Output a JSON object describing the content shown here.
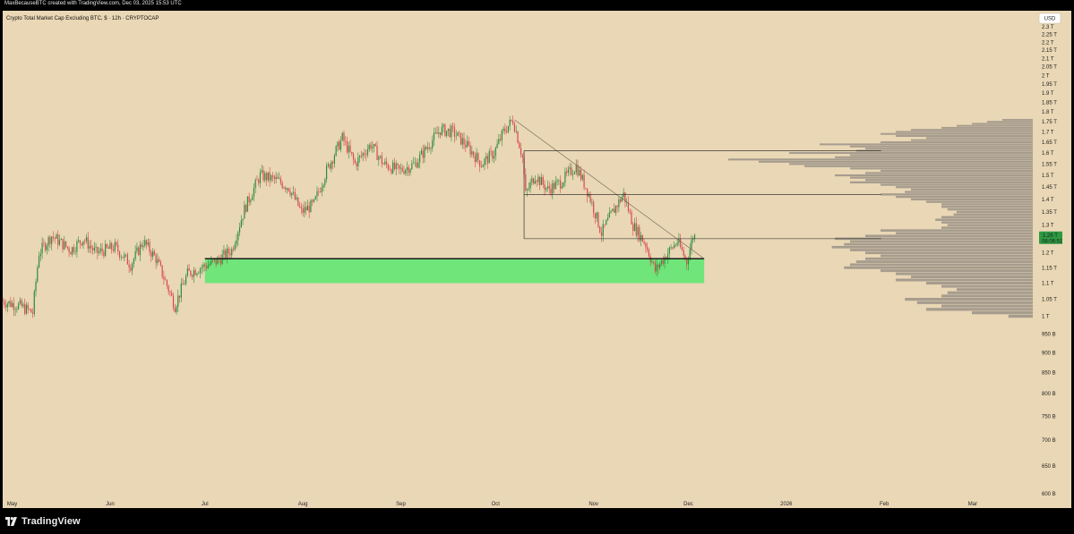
{
  "header": {
    "credit": "MaxBecauseBTC created with TradingView.com, Dec 03, 2025 15:53 UTC"
  },
  "footer": {
    "brand": "TradingView"
  },
  "colors": {
    "background": "#e9d7b5",
    "up_candle": "#2f8b3c",
    "down_candle": "#d9474e",
    "support_zone": "#6fe57a",
    "volume_profile": "#9e9689",
    "price_tag": "#2d9a42",
    "drawing_lines": "#1b1b1b"
  },
  "chart_data": {
    "type": "candlestick",
    "title": "Crypto Total Market Cap Excluding BTC, $ · 12h · CRYPTOCAP",
    "currency_button": "USD",
    "price_scale": "log",
    "grid": false,
    "x_tick_labels": [
      "May",
      "Jun",
      "Jul",
      "Aug",
      "Sep",
      "Oct",
      "Nov",
      "Dec",
      "2026",
      "Feb",
      "Mar"
    ],
    "y_tick_labels": [
      "2.3 T",
      "2.25 T",
      "2.2 T",
      "2.15 T",
      "2.1 T",
      "2.05 T",
      "2 T",
      "1.95 T",
      "1.9 T",
      "1.85 T",
      "1.8 T",
      "1.75 T",
      "1.7 T",
      "1.65 T",
      "1.6 T",
      "1.55 T",
      "1.5 T",
      "1.45 T",
      "1.4 T",
      "1.35 T",
      "1.3 T",
      "1.25 T",
      "1.2 T",
      "1.15 T",
      "1.1 T",
      "1.05 T",
      "1 T",
      "950 B",
      "900 B",
      "850 B",
      "800 B",
      "750 B",
      "700 B",
      "650 B",
      "600 B"
    ],
    "y_range": [
      "600 B",
      "2.3 T"
    ],
    "x_range": [
      "2025-04-28",
      "2026-03-20"
    ],
    "last_price": {
      "label": "1.26 T",
      "countdown": "08:06:51"
    },
    "price_path": [
      [
        "2025-04-28",
        1.045
      ],
      [
        "2025-05-04",
        1.03
      ],
      [
        "2025-05-08",
        1.01
      ],
      [
        "2025-05-10",
        1.2
      ],
      [
        "2025-05-14",
        1.26
      ],
      [
        "2025-05-20",
        1.21
      ],
      [
        "2025-05-24",
        1.25
      ],
      [
        "2025-05-28",
        1.2
      ],
      [
        "2025-06-03",
        1.22
      ],
      [
        "2025-06-08",
        1.16
      ],
      [
        "2025-06-12",
        1.24
      ],
      [
        "2025-06-16",
        1.18
      ],
      [
        "2025-06-22",
        1.03
      ],
      [
        "2025-06-26",
        1.13
      ],
      [
        "2025-06-30",
        1.15
      ],
      [
        "2025-07-05",
        1.17
      ],
      [
        "2025-07-10",
        1.21
      ],
      [
        "2025-07-14",
        1.36
      ],
      [
        "2025-07-19",
        1.5
      ],
      [
        "2025-07-24",
        1.48
      ],
      [
        "2025-07-28",
        1.45
      ],
      [
        "2025-08-01",
        1.35
      ],
      [
        "2025-08-05",
        1.38
      ],
      [
        "2025-08-09",
        1.52
      ],
      [
        "2025-08-14",
        1.67
      ],
      [
        "2025-08-18",
        1.55
      ],
      [
        "2025-08-23",
        1.64
      ],
      [
        "2025-08-27",
        1.55
      ],
      [
        "2025-09-01",
        1.52
      ],
      [
        "2025-09-06",
        1.55
      ],
      [
        "2025-09-10",
        1.63
      ],
      [
        "2025-09-14",
        1.71
      ],
      [
        "2025-09-18",
        1.7
      ],
      [
        "2025-09-22",
        1.64
      ],
      [
        "2025-09-27",
        1.55
      ],
      [
        "2025-10-01",
        1.6
      ],
      [
        "2025-10-04",
        1.7
      ],
      [
        "2025-10-07",
        1.76
      ],
      [
        "2025-10-10",
        1.58
      ],
      [
        "2025-10-11",
        1.42
      ],
      [
        "2025-10-14",
        1.5
      ],
      [
        "2025-10-18",
        1.44
      ],
      [
        "2025-10-22",
        1.47
      ],
      [
        "2025-10-27",
        1.54
      ],
      [
        "2025-10-31",
        1.42
      ],
      [
        "2025-11-04",
        1.27
      ],
      [
        "2025-11-08",
        1.36
      ],
      [
        "2025-11-11",
        1.42
      ],
      [
        "2025-11-14",
        1.3
      ],
      [
        "2025-11-18",
        1.23
      ],
      [
        "2025-11-21",
        1.14
      ],
      [
        "2025-11-25",
        1.2
      ],
      [
        "2025-11-28",
        1.24
      ],
      [
        "2025-12-01",
        1.17
      ],
      [
        "2025-12-03",
        1.26
      ]
    ],
    "annotations": [
      {
        "type": "support_zone",
        "from": "2025-07-01",
        "to": "2025-12-06",
        "price_low": 1.1,
        "price_high": 1.18
      },
      {
        "type": "horizontal_line",
        "from": "2025-07-01",
        "to": "2025-12-06",
        "price": 1.18
      },
      {
        "type": "trendline",
        "from": [
          "2025-10-07",
          1.76
        ],
        "to": [
          "2025-12-06",
          1.18
        ]
      },
      {
        "type": "range_box",
        "from": "2025-10-10",
        "to": "2026-01-31",
        "price_high": 1.61,
        "price_mid": 1.42,
        "price_low": 1.25
      }
    ],
    "volume_profile": {
      "side": "right",
      "price_levels": [
        1.76,
        1.75,
        1.74,
        1.73,
        1.72,
        1.71,
        1.7,
        1.69,
        1.68,
        1.67,
        1.66,
        1.65,
        1.64,
        1.63,
        1.62,
        1.61,
        1.6,
        1.59,
        1.58,
        1.57,
        1.56,
        1.55,
        1.54,
        1.53,
        1.52,
        1.51,
        1.5,
        1.49,
        1.48,
        1.47,
        1.46,
        1.45,
        1.44,
        1.43,
        1.42,
        1.41,
        1.4,
        1.39,
        1.38,
        1.37,
        1.36,
        1.35,
        1.34,
        1.33,
        1.32,
        1.31,
        1.3,
        1.29,
        1.28,
        1.27,
        1.26,
        1.25,
        1.24,
        1.23,
        1.22,
        1.21,
        1.2,
        1.19,
        1.18,
        1.17,
        1.16,
        1.15,
        1.14,
        1.13,
        1.12,
        1.11,
        1.1,
        1.09,
        1.08,
        1.07,
        1.06,
        1.05,
        1.04,
        1.03,
        1.02,
        1.01,
        1.0
      ],
      "relative_volume": [
        0.1,
        0.15,
        0.2,
        0.25,
        0.3,
        0.4,
        0.45,
        0.5,
        0.45,
        0.35,
        0.4,
        0.5,
        0.7,
        0.6,
        0.55,
        0.58,
        0.8,
        0.6,
        0.65,
        1.0,
        0.9,
        0.8,
        0.75,
        0.6,
        0.5,
        0.55,
        0.65,
        0.6,
        0.55,
        0.6,
        0.5,
        0.45,
        0.4,
        0.42,
        0.5,
        0.45,
        0.4,
        0.35,
        0.3,
        0.3,
        0.28,
        0.25,
        0.26,
        0.3,
        0.32,
        0.3,
        0.28,
        0.3,
        0.5,
        0.45,
        0.55,
        0.65,
        0.6,
        0.62,
        0.66,
        0.6,
        0.55,
        0.5,
        0.55,
        0.58,
        0.6,
        0.62,
        0.5,
        0.45,
        0.4,
        0.45,
        0.35,
        0.3,
        0.25,
        0.28,
        0.3,
        0.42,
        0.38,
        0.3,
        0.35,
        0.2,
        0.08
      ]
    }
  }
}
